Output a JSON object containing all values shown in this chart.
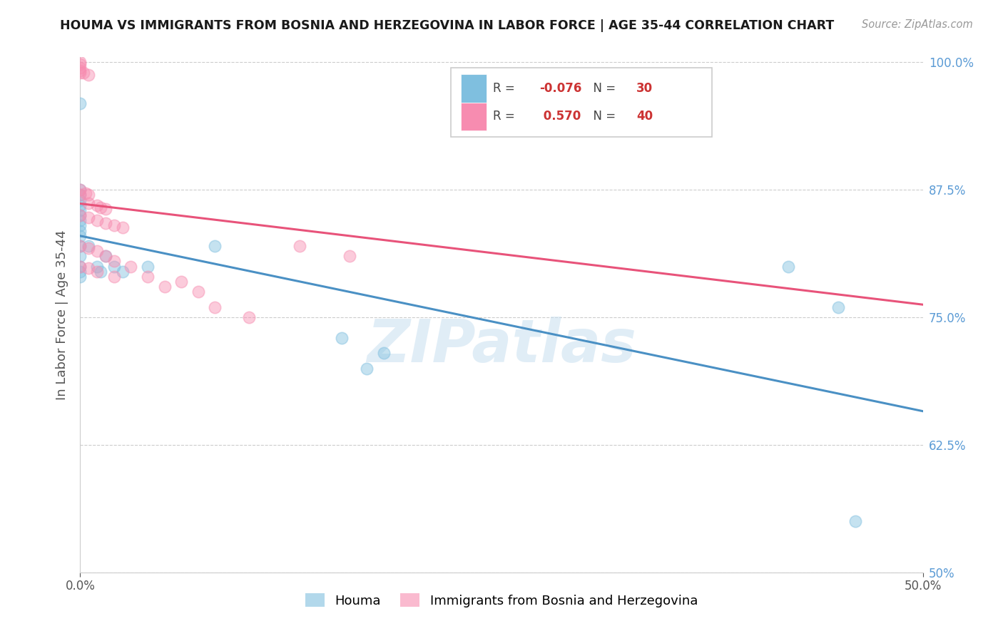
{
  "title": "HOUMA VS IMMIGRANTS FROM BOSNIA AND HERZEGOVINA IN LABOR FORCE | AGE 35-44 CORRELATION CHART",
  "source": "Source: ZipAtlas.com",
  "ylabel": "In Labor Force | Age 35-44",
  "x_min": 0.0,
  "x_max": 0.5,
  "y_min": 0.5,
  "y_max": 1.005,
  "y_ticks": [
    0.5,
    0.625,
    0.75,
    0.875,
    1.0
  ],
  "y_ticklabels": [
    "50%",
    "62.5%",
    "75.0%",
    "87.5%",
    "100.0%"
  ],
  "x_ticks": [
    0.0,
    0.5
  ],
  "x_ticklabels": [
    "0.0%",
    "50.0%"
  ],
  "legend_labels": [
    "Houma",
    "Immigrants from Bosnia and Herzegovina"
  ],
  "houma_color": "#7fbfdf",
  "bosnia_color": "#f78cb0",
  "houma_line_color": "#4a90c4",
  "bosnia_line_color": "#e8537a",
  "R_houma": -0.076,
  "N_houma": 30,
  "R_bosnia": 0.57,
  "N_bosnia": 40,
  "watermark": "ZIPatlas",
  "houma_scatter": [
    [
      0.0,
      0.96
    ],
    [
      0.0,
      0.875
    ],
    [
      0.0,
      0.87
    ],
    [
      0.0,
      0.865
    ],
    [
      0.0,
      0.86
    ],
    [
      0.0,
      0.855
    ],
    [
      0.0,
      0.85
    ],
    [
      0.0,
      0.845
    ],
    [
      0.0,
      0.84
    ],
    [
      0.0,
      0.835
    ],
    [
      0.0,
      0.83
    ],
    [
      0.0,
      0.82
    ],
    [
      0.0,
      0.81
    ],
    [
      0.0,
      0.8
    ],
    [
      0.0,
      0.795
    ],
    [
      0.0,
      0.79
    ],
    [
      0.005,
      0.82
    ],
    [
      0.01,
      0.8
    ],
    [
      0.012,
      0.795
    ],
    [
      0.015,
      0.81
    ],
    [
      0.02,
      0.8
    ],
    [
      0.025,
      0.795
    ],
    [
      0.04,
      0.8
    ],
    [
      0.08,
      0.82
    ],
    [
      0.155,
      0.73
    ],
    [
      0.17,
      0.7
    ],
    [
      0.18,
      0.715
    ],
    [
      0.42,
      0.8
    ],
    [
      0.45,
      0.76
    ],
    [
      0.46,
      0.55
    ]
  ],
  "bosnia_scatter": [
    [
      0.0,
      1.0
    ],
    [
      0.0,
      0.998
    ],
    [
      0.0,
      0.995
    ],
    [
      0.0,
      0.992
    ],
    [
      0.0,
      0.99
    ],
    [
      0.002,
      0.99
    ],
    [
      0.005,
      0.988
    ],
    [
      0.0,
      0.875
    ],
    [
      0.0,
      0.87
    ],
    [
      0.003,
      0.872
    ],
    [
      0.005,
      0.87
    ],
    [
      0.005,
      0.862
    ],
    [
      0.01,
      0.86
    ],
    [
      0.012,
      0.858
    ],
    [
      0.015,
      0.856
    ],
    [
      0.0,
      0.85
    ],
    [
      0.005,
      0.848
    ],
    [
      0.01,
      0.845
    ],
    [
      0.015,
      0.842
    ],
    [
      0.02,
      0.84
    ],
    [
      0.025,
      0.838
    ],
    [
      0.0,
      0.82
    ],
    [
      0.005,
      0.818
    ],
    [
      0.01,
      0.815
    ],
    [
      0.015,
      0.81
    ],
    [
      0.02,
      0.805
    ],
    [
      0.0,
      0.8
    ],
    [
      0.005,
      0.798
    ],
    [
      0.01,
      0.795
    ],
    [
      0.02,
      0.79
    ],
    [
      0.03,
      0.8
    ],
    [
      0.04,
      0.79
    ],
    [
      0.05,
      0.78
    ],
    [
      0.06,
      0.785
    ],
    [
      0.07,
      0.775
    ],
    [
      0.08,
      0.76
    ],
    [
      0.1,
      0.75
    ],
    [
      0.13,
      0.82
    ],
    [
      0.16,
      0.81
    ],
    [
      0.28,
      0.96
    ]
  ]
}
